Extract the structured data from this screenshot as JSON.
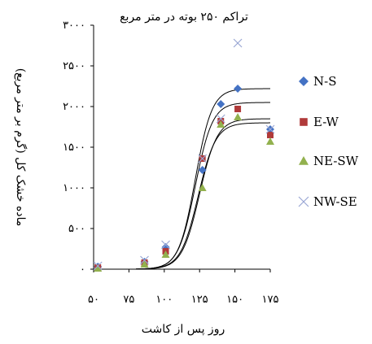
{
  "chart_data": {
    "type": "scatter",
    "title": "تراکم ۲۵۰ بوته در متر مربع",
    "xlabel": "روز پس از کاشت",
    "ylabel": "ماده خشک کل (گرم بر متر مربع)",
    "xlim": [
      50,
      175
    ],
    "ylim": [
      0,
      3000
    ],
    "xticks": [
      50,
      75,
      100,
      125,
      150,
      175
    ],
    "xtick_labels": [
      "۵۰",
      "۷۵",
      "۱۰۰",
      "۱۲۵",
      "۱۵۰",
      "۱۷۵"
    ],
    "yticks": [
      0,
      500,
      1000,
      1500,
      2000,
      2500,
      3000
    ],
    "ytick_labels": [
      "۰",
      "۵۰۰",
      "۱۰۰۰",
      "۱۵۰۰",
      "۲۰۰۰",
      "۲۵۰۰",
      "۳۰۰۰"
    ],
    "grid": false,
    "legend_position": "right",
    "series": [
      {
        "name": "N-S",
        "marker": "diamond",
        "color": "#4472C4",
        "points": [
          [
            53,
            30
          ],
          [
            86,
            90
          ],
          [
            101,
            270
          ],
          [
            127,
            1220
          ],
          [
            140,
            2030
          ],
          [
            152,
            2220
          ],
          [
            175,
            1720
          ]
        ],
        "fit": {
          "asymptote": 2220,
          "midpoint": 122,
          "rate": 0.17
        }
      },
      {
        "name": "E-W",
        "marker": "square",
        "color": "#B03A3A",
        "points": [
          [
            53,
            20
          ],
          [
            86,
            80
          ],
          [
            101,
            220
          ],
          [
            127,
            1360
          ],
          [
            140,
            1820
          ],
          [
            152,
            1970
          ],
          [
            175,
            1650
          ]
        ],
        "fit": {
          "asymptote": 2050,
          "midpoint": 122,
          "rate": 0.165
        }
      },
      {
        "name": "NE-SW",
        "marker": "triangle",
        "color": "#92B14E",
        "points": [
          [
            53,
            10
          ],
          [
            86,
            60
          ],
          [
            101,
            180
          ],
          [
            127,
            1000
          ],
          [
            140,
            1780
          ],
          [
            152,
            1870
          ],
          [
            175,
            1570
          ]
        ],
        "fit": {
          "asymptote": 1800,
          "midpoint": 124,
          "rate": 0.16
        }
      },
      {
        "name": "NW-SE",
        "marker": "cross",
        "color": "#9AA7D4",
        "points": [
          [
            53,
            40
          ],
          [
            86,
            110
          ],
          [
            101,
            300
          ],
          [
            127,
            1360
          ],
          [
            140,
            1850
          ],
          [
            152,
            2780
          ],
          [
            175,
            1720
          ]
        ],
        "fit": {
          "asymptote": 1850,
          "midpoint": 125,
          "rate": 0.16
        }
      }
    ]
  }
}
